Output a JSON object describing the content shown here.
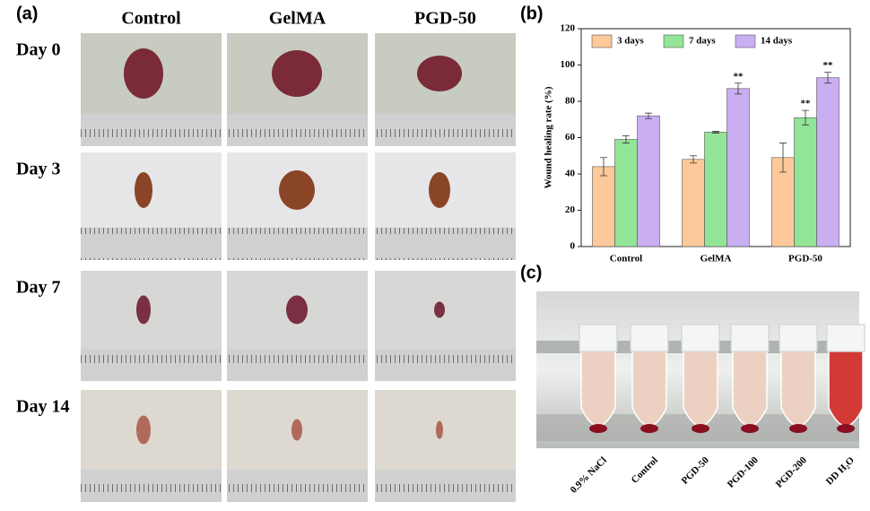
{
  "panel_a": {
    "label": "(a)",
    "columns": [
      "Control",
      "GelMA",
      "PGD-50"
    ],
    "rows": [
      "Day 0",
      "Day 3",
      "Day 7",
      "Day 14"
    ]
  },
  "panel_b": {
    "label": "(b)"
  },
  "chart_data": {
    "type": "bar",
    "y_label": "Wound healing rate (%)",
    "categories": [
      "Control",
      "GelMA",
      "PGD-50"
    ],
    "series": [
      {
        "name": "3 days",
        "color": "#fdc99a",
        "values": [
          44,
          48,
          49
        ],
        "errors": [
          5,
          2,
          8
        ],
        "annotations": [
          null,
          null,
          null
        ]
      },
      {
        "name": "7 days",
        "color": "#92e596",
        "values": [
          59,
          63,
          71
        ],
        "errors": [
          2,
          0.5,
          4
        ],
        "annotations": [
          null,
          null,
          "**"
        ]
      },
      {
        "name": "14 days",
        "color": "#c9aef2",
        "values": [
          72,
          87,
          93
        ],
        "errors": [
          1.5,
          3,
          3
        ],
        "annotations": [
          null,
          "**",
          "**"
        ]
      }
    ],
    "ylim": [
      0,
      120
    ],
    "yticks": [
      0,
      20,
      40,
      60,
      80,
      100,
      120
    ],
    "legend": "top-left",
    "grid": false
  },
  "panel_c": {
    "label": "(c)",
    "tubes": [
      "0.9% NaCl",
      "Control",
      "PGD-50",
      "PGD-100",
      "PGD-200",
      "DD H₂O"
    ]
  }
}
